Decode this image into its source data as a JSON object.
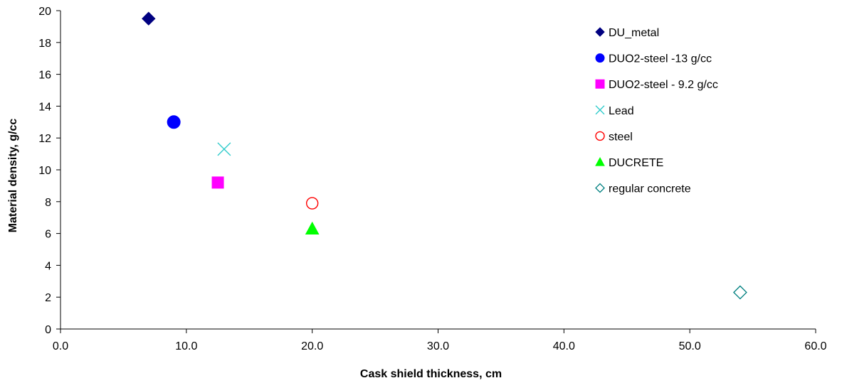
{
  "chart_data": {
    "type": "scatter",
    "xlabel": "Cask shield thickness, cm",
    "ylabel": "Material density, g/cc",
    "xlim": [
      0,
      60
    ],
    "ylim": [
      0,
      20
    ],
    "x_ticks": [
      "0.0",
      "10.0",
      "20.0",
      "30.0",
      "40.0",
      "50.0",
      "60.0"
    ],
    "y_ticks": [
      "0",
      "2",
      "4",
      "6",
      "8",
      "10",
      "12",
      "14",
      "16",
      "18",
      "20"
    ],
    "grid": false,
    "legend_position": "top-right",
    "series": [
      {
        "name": "DU_metal",
        "marker": "diamond-filled",
        "color": "#000080",
        "x": [
          7.0
        ],
        "y": [
          19.5
        ]
      },
      {
        "name": "DUO2-steel -13 g/cc",
        "marker": "circle-filled",
        "color": "#0000FF",
        "x": [
          9.0
        ],
        "y": [
          13.0
        ]
      },
      {
        "name": "DUO2-steel - 9.2 g/cc",
        "marker": "square-filled",
        "color": "#FF00FF",
        "x": [
          12.5
        ],
        "y": [
          9.2
        ]
      },
      {
        "name": "Lead",
        "marker": "x",
        "color": "#33CCCC",
        "x": [
          13.0
        ],
        "y": [
          11.3
        ]
      },
      {
        "name": "steel",
        "marker": "circle-open",
        "color": "#FF0000",
        "x": [
          20.0
        ],
        "y": [
          7.9
        ]
      },
      {
        "name": "DUCRETE",
        "marker": "triangle-filled",
        "color": "#00FF00",
        "x": [
          20.0
        ],
        "y": [
          6.3
        ]
      },
      {
        "name": "regular concrete",
        "marker": "diamond-open",
        "color": "#008080",
        "x": [
          54.0
        ],
        "y": [
          2.3
        ]
      }
    ]
  }
}
